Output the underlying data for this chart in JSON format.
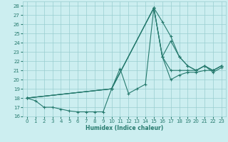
{
  "xlabel": "Humidex (Indice chaleur)",
  "bg_color": "#cceef0",
  "grid_color": "#99cdd0",
  "line_color": "#267a6e",
  "xlim": [
    -0.5,
    23.5
  ],
  "ylim": [
    16,
    28.5
  ],
  "yticks": [
    16,
    17,
    18,
    19,
    20,
    21,
    22,
    23,
    24,
    25,
    26,
    27,
    28
  ],
  "xticks": [
    0,
    1,
    2,
    3,
    4,
    5,
    6,
    7,
    8,
    9,
    10,
    11,
    12,
    13,
    14,
    15,
    16,
    17,
    18,
    19,
    20,
    21,
    22,
    23
  ],
  "line1_x": [
    0,
    1,
    2,
    3,
    4,
    5,
    6,
    7,
    8,
    9,
    10,
    11,
    12,
    13,
    14,
    15,
    16,
    17,
    18,
    19,
    20,
    21,
    22,
    23
  ],
  "line1_y": [
    18.0,
    17.7,
    17.0,
    17.0,
    16.8,
    16.6,
    16.5,
    16.5,
    16.5,
    16.5,
    19.0,
    21.2,
    18.5,
    19.0,
    19.5,
    27.8,
    26.3,
    24.7,
    22.5,
    21.5,
    21.0,
    21.5,
    20.8,
    21.3
  ],
  "line2_x": [
    0,
    10,
    15,
    16,
    17,
    18,
    19,
    20,
    21,
    22,
    23
  ],
  "line2_y": [
    18.0,
    19.0,
    27.8,
    22.5,
    24.2,
    22.5,
    21.5,
    21.0,
    21.5,
    21.0,
    21.5
  ],
  "line3_x": [
    0,
    10,
    15,
    16,
    17,
    18,
    19,
    20,
    21,
    22,
    23
  ],
  "line3_y": [
    18.0,
    19.0,
    27.8,
    22.5,
    21.0,
    21.0,
    21.0,
    21.0,
    21.5,
    21.0,
    21.5
  ],
  "line4_x": [
    0,
    10,
    15,
    16,
    17,
    18,
    19,
    20,
    21,
    22,
    23
  ],
  "line4_y": [
    18.0,
    19.0,
    27.8,
    22.5,
    20.0,
    20.5,
    20.8,
    20.8,
    21.0,
    21.0,
    21.5
  ]
}
